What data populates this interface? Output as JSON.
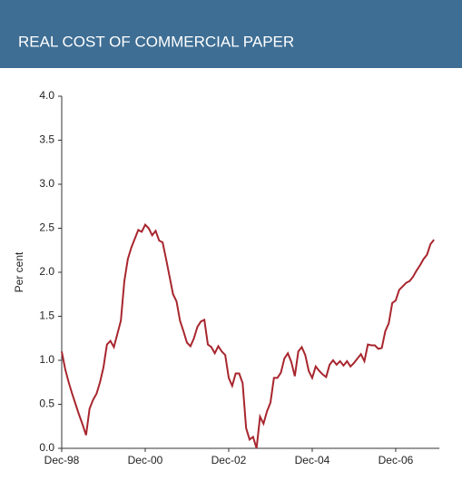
{
  "chart_data": {
    "type": "line",
    "title": "REAL COST OF COMMERCIAL PAPER",
    "y_label": "Per cent",
    "categories": [
      "Dec-98",
      null,
      null,
      null,
      null,
      null,
      null,
      null,
      null,
      null,
      null,
      null,
      null,
      null,
      null,
      null,
      null,
      null,
      null,
      null,
      null,
      null,
      null,
      null,
      "Dec-00",
      null,
      null,
      null,
      null,
      null,
      null,
      null,
      null,
      null,
      null,
      null,
      null,
      null,
      null,
      null,
      null,
      null,
      null,
      null,
      null,
      null,
      null,
      null,
      "Dec-02",
      null,
      null,
      null,
      null,
      null,
      null,
      null,
      null,
      null,
      null,
      null,
      null,
      null,
      null,
      null,
      null,
      null,
      null,
      null,
      null,
      null,
      null,
      null,
      "Dec-04",
      null,
      null,
      null,
      null,
      null,
      null,
      null,
      null,
      null,
      null,
      null,
      null,
      null,
      null,
      null,
      null,
      null,
      null,
      null,
      null,
      null,
      null,
      null,
      "Dec-06",
      null,
      null,
      null,
      null,
      null,
      null,
      null,
      null,
      null,
      null,
      null
    ],
    "values": [
      1.1,
      0.9,
      0.75,
      0.62,
      0.5,
      0.38,
      0.27,
      0.15,
      0.45,
      0.55,
      0.62,
      0.75,
      0.92,
      1.18,
      1.22,
      1.15,
      1.3,
      1.45,
      1.9,
      2.15,
      2.28,
      2.38,
      2.48,
      2.46,
      2.54,
      2.5,
      2.42,
      2.47,
      2.36,
      2.34,
      2.15,
      1.95,
      1.75,
      1.67,
      1.45,
      1.33,
      1.2,
      1.16,
      1.25,
      1.38,
      1.44,
      1.46,
      1.18,
      1.15,
      1.08,
      1.16,
      1.1,
      1.06,
      0.8,
      0.71,
      0.85,
      0.85,
      0.74,
      0.23,
      0.1,
      0.13,
      0.0,
      0.36,
      0.28,
      0.42,
      0.52,
      0.8,
      0.8,
      0.86,
      1.02,
      1.08,
      0.98,
      0.82,
      1.1,
      1.15,
      1.06,
      0.88,
      0.8,
      0.93,
      0.88,
      0.84,
      0.81,
      0.95,
      1.0,
      0.95,
      0.99,
      0.94,
      0.99,
      0.93,
      0.97,
      1.02,
      1.07,
      0.99,
      1.18,
      1.17,
      1.17,
      1.13,
      1.14,
      1.33,
      1.42,
      1.65,
      1.68,
      1.8,
      1.84,
      1.88,
      1.9,
      1.95,
      2.02,
      2.08,
      2.15,
      2.2,
      2.32,
      2.37
    ],
    "color": "#a8262e",
    "ylim": [
      0,
      4
    ],
    "yticks": [
      {
        "value": 0,
        "label": "0.0"
      },
      {
        "value": 0.5,
        "label": "0.5"
      },
      {
        "value": 1,
        "label": "1.0"
      },
      {
        "value": 1.5,
        "label": "1.5"
      },
      {
        "value": 2,
        "label": "2.0"
      },
      {
        "value": 2.5,
        "label": "2.5"
      },
      {
        "value": 3,
        "label": "3.0"
      },
      {
        "value": 3.5,
        "label": "3.5"
      },
      {
        "value": 4,
        "label": "4.0"
      }
    ]
  }
}
